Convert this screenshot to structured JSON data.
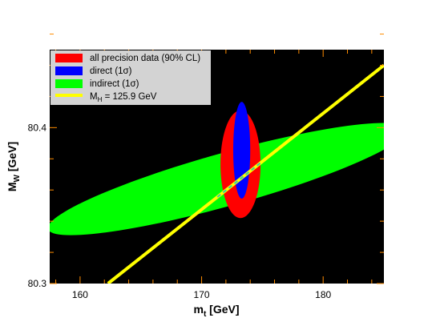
{
  "chart_data": {
    "type": "ellipse-contour",
    "xlabel": "m",
    "xlabel_sub": "t",
    "xlabel_unit": " [GeV]",
    "ylabel": "M",
    "ylabel_sub": "W",
    "ylabel_unit": " [GeV]",
    "xlim": [
      157.5,
      185
    ],
    "ylim": [
      80.3,
      80.45
    ],
    "xticks": [
      160,
      170,
      180
    ],
    "xtick_labels": [
      "160",
      "170",
      "180"
    ],
    "yticks": [
      80.3,
      80.4
    ],
    "ytick_labels": [
      "80.3",
      "80.4"
    ],
    "x_minor_step": 2,
    "y_minor_step": 0.02,
    "grid": false,
    "legend_position": "top-left",
    "legend": [
      {
        "id": "precision",
        "label": "all precision data (90% CL)",
        "color": "#ff0000"
      },
      {
        "id": "direct",
        "label": "direct (1σ)",
        "color": "#0000ff"
      },
      {
        "id": "indirect",
        "label": "indirect (1σ)",
        "color": "#00ff00"
      },
      {
        "id": "higgs",
        "label_main": "M",
        "label_sub": "H",
        "label_rest": " = 125.9 GeV",
        "color": "#ffff00"
      }
    ],
    "regions": {
      "indirect": {
        "center": [
          172.1,
          80.367
        ],
        "semi_axes": [
          15.3,
          0.017
        ],
        "angle_deg": 15.6,
        "color": "#00ff00"
      },
      "precision": {
        "center": [
          173.2,
          80.3765
        ],
        "semi_axes": [
          1.65,
          0.0345
        ],
        "angle_deg": 0,
        "color": "#ff0000"
      },
      "direct": {
        "center": [
          173.3,
          80.3855
        ],
        "semi_axes": [
          0.7,
          0.031
        ],
        "angle_deg": 0,
        "color": "#0000ff"
      }
    },
    "line": {
      "id": "higgs",
      "points": [
        [
          162.3,
          80.3
        ],
        [
          185,
          80.44
        ]
      ],
      "color": "#ffff00"
    }
  }
}
